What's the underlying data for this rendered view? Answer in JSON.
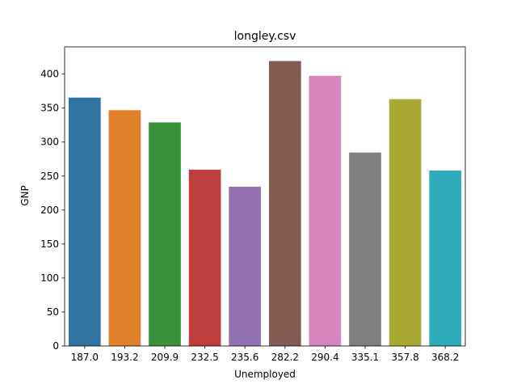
{
  "chart_data": {
    "type": "bar",
    "title": "longley.csv",
    "xlabel": "Unemployed",
    "ylabel": "GNP",
    "categories": [
      "187.0",
      "193.2",
      "209.9",
      "232.5",
      "235.6",
      "282.2",
      "290.4",
      "335.1",
      "357.8",
      "368.2"
    ],
    "values": [
      365.4,
      346.9,
      328.9,
      259.4,
      234.3,
      419.2,
      397.5,
      284.6,
      363.1,
      258.1
    ],
    "colors": [
      "#3274a1",
      "#e1812c",
      "#3a923a",
      "#c03d3e",
      "#9372b2",
      "#845b53",
      "#d684bd",
      "#7f7f7f",
      "#a9aa35",
      "#2eabb8"
    ],
    "ylim": [
      0,
      440
    ],
    "yticks": [
      0,
      50,
      100,
      150,
      200,
      250,
      300,
      350,
      400
    ],
    "grid": false,
    "legend": "none"
  }
}
